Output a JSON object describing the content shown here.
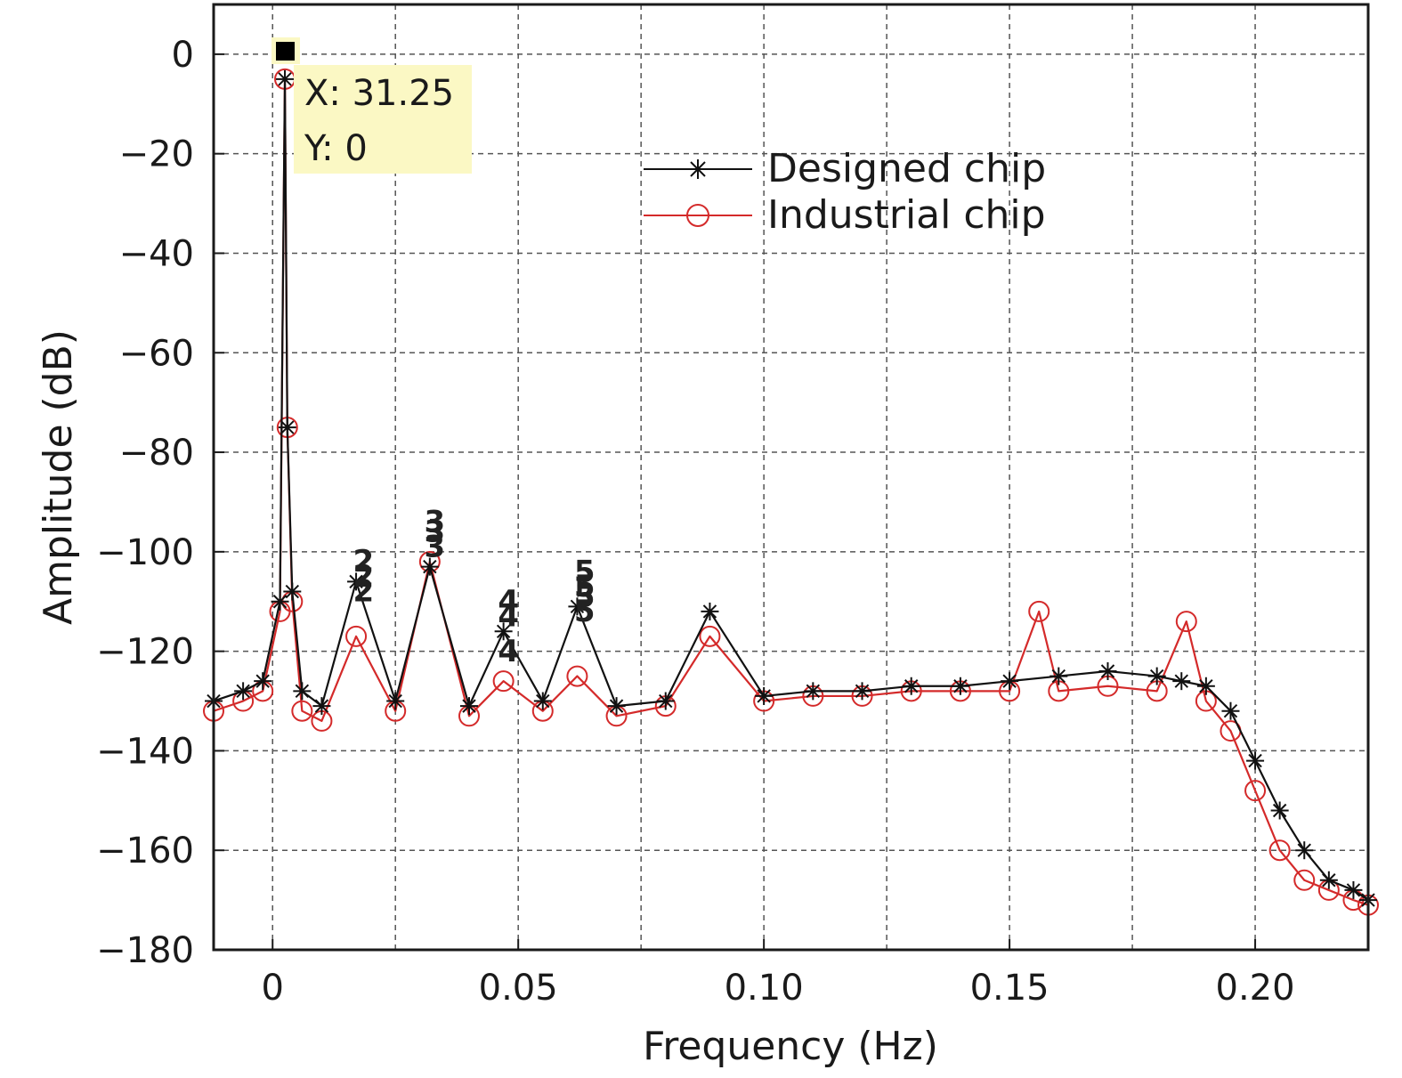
{
  "chart_data": {
    "type": "line",
    "title": "",
    "xlabel": "Frequency (Hz)",
    "ylabel": "Amplitude (dB)",
    "xlim": [
      -0.012,
      0.223
    ],
    "ylim": [
      -180,
      10
    ],
    "x_tick_labels": [
      "0",
      "0.05",
      "0.10",
      "0.15",
      "0.20"
    ],
    "x_ticks": [
      0,
      0.05,
      0.1,
      0.15,
      0.2
    ],
    "y_ticks": [
      0,
      -20,
      -40,
      -60,
      -80,
      -100,
      -120,
      -140,
      -160,
      -180
    ],
    "y_tick_labels": [
      "0",
      "−20",
      "−40",
      "−60",
      "−80",
      "−100",
      "−120",
      "−140",
      "−160",
      "−180"
    ],
    "grid": true,
    "legend_position": "top-right",
    "series": [
      {
        "name": "Designed chip",
        "color": "#111111",
        "marker": "asterisk",
        "x": [
          -0.012,
          -0.006,
          -0.002,
          0.0015,
          0.0025,
          0.003,
          0.004,
          0.006,
          0.01,
          0.017,
          0.025,
          0.032,
          0.04,
          0.047,
          0.055,
          0.062,
          0.07,
          0.08,
          0.089,
          0.1,
          0.11,
          0.12,
          0.13,
          0.14,
          0.15,
          0.16,
          0.17,
          0.18,
          0.185,
          0.19,
          0.195,
          0.2,
          0.205,
          0.21,
          0.215,
          0.22,
          0.223
        ],
        "y": [
          -130,
          -128,
          -126,
          -110,
          -5,
          -75,
          -108,
          -128,
          -131,
          -106,
          -130,
          -103,
          -131,
          -116,
          -130,
          -111,
          -131,
          -130,
          -112,
          -129,
          -128,
          -128,
          -127,
          -127,
          -126,
          -125,
          -124,
          -125,
          -126,
          -127,
          -132,
          -142,
          -152,
          -160,
          -166,
          -168,
          -170
        ]
      },
      {
        "name": "Industrial chip",
        "color": "#d42a2a",
        "marker": "circle",
        "x": [
          -0.012,
          -0.006,
          -0.002,
          0.0015,
          0.0025,
          0.003,
          0.004,
          0.006,
          0.01,
          0.017,
          0.025,
          0.032,
          0.04,
          0.047,
          0.055,
          0.062,
          0.07,
          0.08,
          0.089,
          0.1,
          0.11,
          0.12,
          0.13,
          0.14,
          0.15,
          0.156,
          0.16,
          0.17,
          0.18,
          0.186,
          0.19,
          0.195,
          0.2,
          0.205,
          0.21,
          0.215,
          0.22,
          0.223
        ],
        "y": [
          -132,
          -130,
          -128,
          -112,
          -5,
          -75,
          -110,
          -132,
          -134,
          -117,
          -132,
          -102,
          -133,
          -126,
          -132,
          -125,
          -133,
          -131,
          -117,
          -130,
          -129,
          -129,
          -128,
          -128,
          -128,
          -112,
          -128,
          -127,
          -128,
          -114,
          -130,
          -136,
          -148,
          -160,
          -166,
          -168,
          -170,
          -171
        ]
      }
    ],
    "harmonic_labels": [
      {
        "label": "2",
        "x": 0.0185,
        "y": -104
      },
      {
        "label": "2",
        "x": 0.0185,
        "y": -107
      },
      {
        "label": "2",
        "x": 0.0185,
        "y": -110
      },
      {
        "label": "3",
        "x": 0.033,
        "y": -96
      },
      {
        "label": "3",
        "x": 0.033,
        "y": -98
      },
      {
        "label": "3",
        "x": 0.033,
        "y": -101
      },
      {
        "label": "4",
        "x": 0.048,
        "y": -112
      },
      {
        "label": "4",
        "x": 0.048,
        "y": -115
      },
      {
        "label": "4",
        "x": 0.048,
        "y": -122
      },
      {
        "label": "5",
        "x": 0.0635,
        "y": -106
      },
      {
        "label": "5",
        "x": 0.0635,
        "y": -109
      },
      {
        "label": "5",
        "x": 0.0635,
        "y": -111
      },
      {
        "label": "5",
        "x": 0.0635,
        "y": -114
      }
    ],
    "datatip": {
      "x_text": "X: 31.25",
      "y_text": "Y: 0",
      "x": 0.0025,
      "y": 0
    }
  }
}
